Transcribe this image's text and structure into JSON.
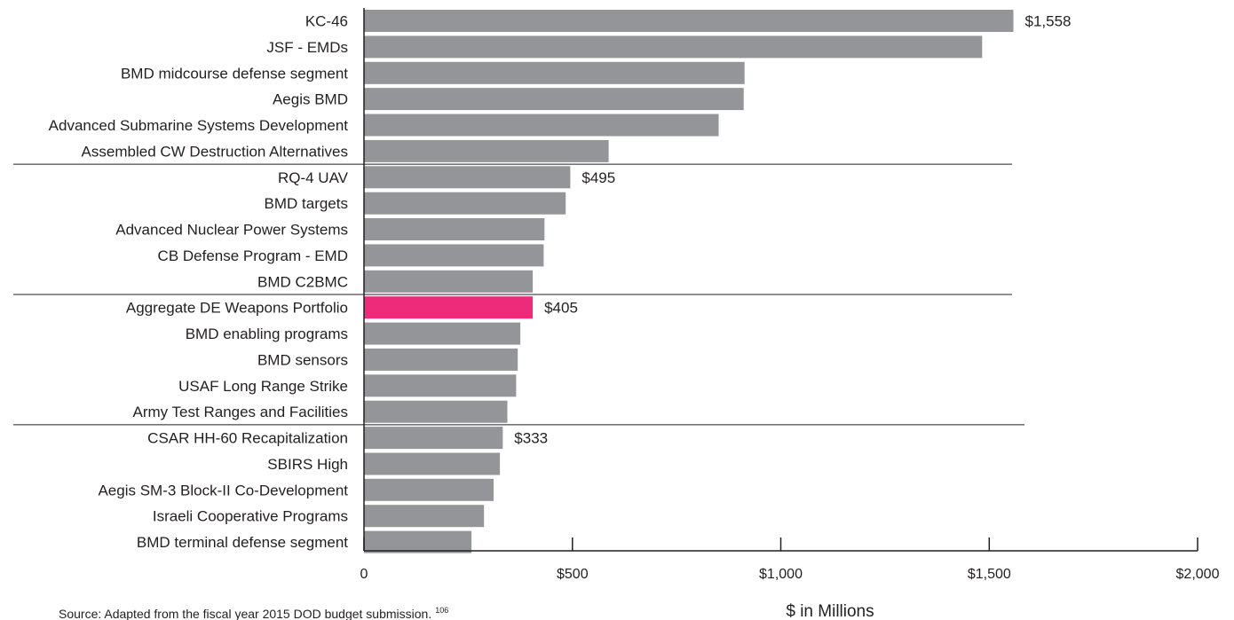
{
  "chart_data": {
    "type": "bar",
    "orientation": "horizontal",
    "categories": [
      "KC-46",
      "JSF - EMDs",
      "BMD midcourse defense segment",
      "Aegis BMD",
      "Advanced Submarine Systems Development",
      "Assembled CW Destruction Alternatives",
      "RQ-4 UAV",
      "BMD targets",
      "Advanced Nuclear Power Systems",
      "CB Defense Program - EMD",
      "BMD C2BMC",
      "Aggregate DE Weapons Portfolio",
      "BMD enabling programs",
      "BMD sensors",
      "USAF Long Range Strike",
      "Army Test Ranges and Facilities",
      "CSAR HH-60 Recapitalization",
      "SBIRS High",
      "Aegis SM-3 Block-II Co-Development",
      "Israeli Cooperative Programs",
      "BMD terminal defense segment"
    ],
    "values": [
      1558,
      1483,
      913,
      911,
      851,
      587,
      495,
      484,
      433,
      431,
      405,
      405,
      375,
      369,
      365,
      344,
      333,
      326,
      311,
      288,
      258
    ],
    "data_labels": [
      {
        "category": "KC-46",
        "text": "$1,558"
      },
      {
        "category": "RQ-4 UAV",
        "text": "$495"
      },
      {
        "category": "Aggregate DE Weapons Portfolio",
        "text": "$405"
      },
      {
        "category": "CSAR HH-60 Recapitalization",
        "text": "$333"
      }
    ],
    "highlight_category": "Aggregate DE Weapons Portfolio",
    "group_separators_after": [
      "Assembled CW Destruction Alternatives",
      "BMD C2BMC",
      "Army Test Ranges and Facilities"
    ],
    "xlim": [
      0,
      2000
    ],
    "x_ticks": [
      0,
      500,
      1000,
      1500,
      2000
    ],
    "x_tick_labels": [
      "0",
      "$500",
      "$1,000",
      "$1,500",
      "$2,000"
    ],
    "xlabel": "$ in Millions",
    "ylabel": "",
    "title": "",
    "grid": false,
    "legend": "none",
    "colors": {
      "bar": "#939598",
      "highlight": "#ee2a7b",
      "text": "#231f20",
      "axis": "#231f20"
    }
  },
  "source_note": {
    "text": "Source: Adapted from the fiscal year 2015 DOD budget submission.",
    "footnote": "106"
  }
}
